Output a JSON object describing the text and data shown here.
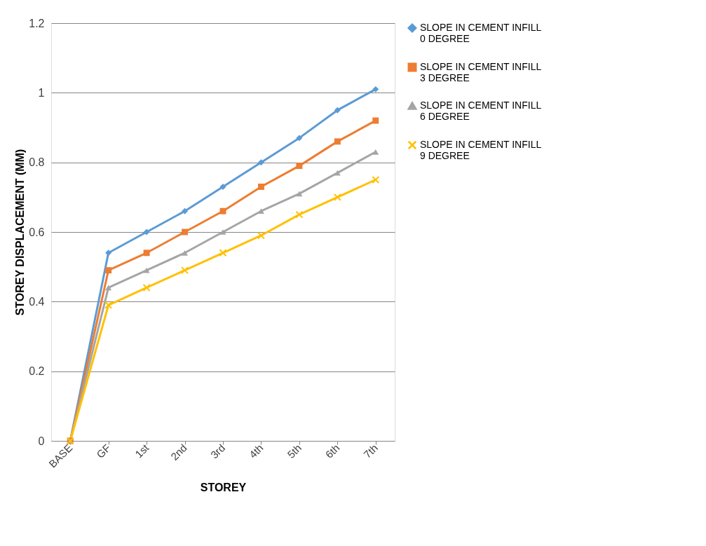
{
  "chart_data": {
    "type": "line",
    "xlabel": "STOREY",
    "ylabel": "STOREY DISPLACEMENT (MM)",
    "categories": [
      "BASE",
      "GF",
      "1st",
      "2nd",
      "3rd",
      "4th",
      "5th",
      "6th",
      "7th"
    ],
    "ylim": [
      0,
      1.2
    ],
    "yticks": [
      0,
      0.2,
      0.4,
      0.6,
      0.8,
      1,
      1.2
    ],
    "grid": "y",
    "legend": "right",
    "series": [
      {
        "name": "SLOPE IN CEMENT INFILL 0 DEGREE",
        "color": "#5b9bd5",
        "marker": "diamond",
        "values": [
          0,
          0.54,
          0.6,
          0.66,
          0.73,
          0.8,
          0.87,
          0.95,
          1.01
        ]
      },
      {
        "name": "SLOPE IN CEMENT INFILL 3 DEGREE",
        "color": "#ed7d31",
        "marker": "square",
        "values": [
          0,
          0.49,
          0.54,
          0.6,
          0.66,
          0.73,
          0.79,
          0.86,
          0.92
        ]
      },
      {
        "name": "SLOPE IN CEMENT INFILL 6 DEGREE",
        "color": "#a5a5a5",
        "marker": "triangle",
        "values": [
          0,
          0.44,
          0.49,
          0.54,
          0.6,
          0.66,
          0.71,
          0.77,
          0.83
        ]
      },
      {
        "name": "SLOPE IN CEMENT INFILL 9 DEGREE",
        "color": "#ffc000",
        "marker": "cross",
        "values": [
          0,
          0.39,
          0.44,
          0.49,
          0.54,
          0.59,
          0.65,
          0.7,
          0.75
        ]
      }
    ]
  }
}
